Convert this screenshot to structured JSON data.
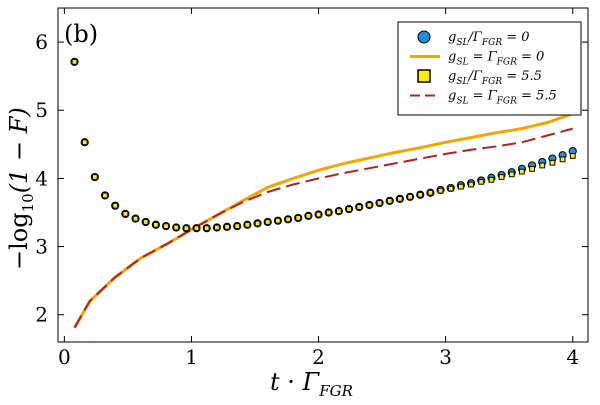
{
  "chart_data": {
    "type": "scatter+line",
    "panel_label": "(b)",
    "xlabel": "t · Γ_FGR",
    "ylabel": "−log10(1 − F)",
    "xlim": [
      -0.05,
      4.12
    ],
    "ylim": [
      1.6,
      6.5
    ],
    "xticks": [
      0,
      1,
      2,
      3,
      4
    ],
    "yticks": [
      2,
      3,
      4,
      5,
      6
    ],
    "legend_position": "top-right",
    "series": [
      {
        "name": "g_SL/Γ_FGR = 0",
        "kind": "markers",
        "marker": "circle",
        "color": "#1f8fd8",
        "edge": "#000000",
        "x": [
          0.08,
          0.16,
          0.24,
          0.32,
          0.4,
          0.48,
          0.56,
          0.64,
          0.72,
          0.8,
          0.88,
          0.96,
          1.04,
          1.12,
          1.2,
          1.28,
          1.36,
          1.44,
          1.52,
          1.6,
          1.68,
          1.76,
          1.84,
          1.92,
          2.0,
          2.08,
          2.16,
          2.24,
          2.32,
          2.4,
          2.48,
          2.56,
          2.64,
          2.72,
          2.8,
          2.88,
          2.96,
          3.04,
          3.12,
          3.2,
          3.28,
          3.36,
          3.44,
          3.52,
          3.6,
          3.68,
          3.76,
          3.84,
          3.92,
          4.0
        ],
        "y": [
          5.71,
          4.53,
          4.02,
          3.75,
          3.6,
          3.48,
          3.41,
          3.36,
          3.32,
          3.3,
          3.28,
          3.27,
          3.27,
          3.27,
          3.28,
          3.29,
          3.3,
          3.32,
          3.34,
          3.36,
          3.38,
          3.4,
          3.42,
          3.45,
          3.47,
          3.5,
          3.52,
          3.55,
          3.58,
          3.61,
          3.64,
          3.67,
          3.7,
          3.73,
          3.76,
          3.79,
          3.83,
          3.86,
          3.9,
          3.93,
          3.97,
          4.01,
          4.05,
          4.09,
          4.14,
          4.19,
          4.24,
          4.29,
          4.34,
          4.4
        ]
      },
      {
        "name": "g_SL = Γ_FGR = 0",
        "kind": "line",
        "style": "solid",
        "color": "#f5a500",
        "x": [
          0.08,
          0.2,
          0.4,
          0.6,
          0.8,
          1.0,
          1.2,
          1.4,
          1.6,
          1.8,
          2.0,
          2.2,
          2.4,
          2.6,
          2.8,
          3.0,
          3.2,
          3.4,
          3.6,
          3.8,
          4.0
        ],
        "y": [
          1.81,
          2.2,
          2.55,
          2.83,
          3.03,
          3.25,
          3.46,
          3.67,
          3.87,
          4.0,
          4.12,
          4.22,
          4.3,
          4.38,
          4.45,
          4.53,
          4.6,
          4.67,
          4.73,
          4.82,
          4.95
        ]
      },
      {
        "name": "g_SL/Γ_FGR = 5.5",
        "kind": "markers",
        "marker": "square",
        "color": "#ffee00",
        "edge": "#000000",
        "x": [
          0.08,
          0.16,
          0.24,
          0.32,
          0.4,
          0.48,
          0.56,
          0.64,
          0.72,
          0.8,
          0.88,
          0.96,
          1.04,
          1.12,
          1.2,
          1.28,
          1.36,
          1.44,
          1.52,
          1.6,
          1.68,
          1.76,
          1.84,
          1.92,
          2.0,
          2.08,
          2.16,
          2.24,
          2.32,
          2.4,
          2.48,
          2.56,
          2.64,
          2.72,
          2.8,
          2.88,
          2.96,
          3.04,
          3.12,
          3.2,
          3.28,
          3.36,
          3.44,
          3.52,
          3.6,
          3.68,
          3.76,
          3.84,
          3.92,
          4.0
        ],
        "y": [
          5.71,
          4.53,
          4.02,
          3.75,
          3.6,
          3.48,
          3.41,
          3.36,
          3.32,
          3.3,
          3.28,
          3.27,
          3.27,
          3.27,
          3.28,
          3.29,
          3.3,
          3.32,
          3.34,
          3.36,
          3.38,
          3.4,
          3.42,
          3.45,
          3.47,
          3.5,
          3.52,
          3.55,
          3.58,
          3.61,
          3.64,
          3.67,
          3.7,
          3.73,
          3.76,
          3.79,
          3.82,
          3.85,
          3.88,
          3.91,
          3.95,
          3.98,
          4.02,
          4.06,
          4.1,
          4.14,
          4.19,
          4.23,
          4.28,
          4.33
        ]
      },
      {
        "name": "g_SL = Γ_FGR = 5.5",
        "kind": "line",
        "style": "dashed",
        "color": "#b22222",
        "x": [
          0.08,
          0.2,
          0.4,
          0.6,
          0.8,
          1.0,
          1.2,
          1.4,
          1.6,
          1.8,
          2.0,
          2.2,
          2.4,
          2.6,
          2.8,
          3.0,
          3.2,
          3.4,
          3.6,
          3.8,
          4.0
        ],
        "y": [
          1.81,
          2.2,
          2.55,
          2.83,
          3.03,
          3.25,
          3.46,
          3.65,
          3.8,
          3.91,
          4.0,
          4.08,
          4.15,
          4.22,
          4.29,
          4.36,
          4.42,
          4.47,
          4.53,
          4.63,
          4.73
        ]
      }
    ],
    "legend": {
      "entries": [
        {
          "base": "g",
          "sub": "SL",
          "mid": "/Γ",
          "sub2": "FGR",
          "rest": " = 0"
        },
        {
          "base": "g",
          "sub": "SL",
          "mid": " = Γ",
          "sub2": "FGR",
          "rest": " = 0"
        },
        {
          "base": "g",
          "sub": "SL",
          "mid": "/Γ",
          "sub2": "FGR",
          "rest": " = 5.5"
        },
        {
          "base": "g",
          "sub": "SL",
          "mid": " = Γ",
          "sub2": "FGR",
          "rest": " = 5.5"
        }
      ]
    },
    "axis_text": {
      "x_main": "t · Γ",
      "x_sub": "FGR",
      "y_pre": "−log",
      "y_sub": "10",
      "y_post": "(1 − F)"
    }
  }
}
